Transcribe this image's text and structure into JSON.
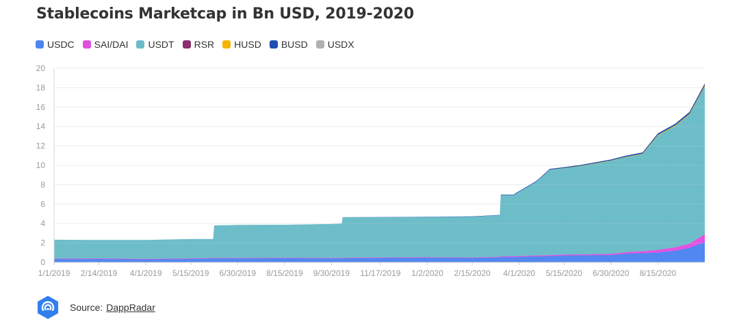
{
  "chart_data": {
    "type": "area",
    "stacked": true,
    "title": "Stablecoins Marketcap in Bn USD, 2019-2020",
    "legend_position": "top-left",
    "grid": true,
    "ylim": [
      0,
      20
    ],
    "y_ticks": [
      0,
      2,
      4,
      6,
      8,
      10,
      12,
      14,
      16,
      18,
      20
    ],
    "x_tick_labels": [
      "1/1/2019",
      "2/14/2019",
      "4/1/2019",
      "5/15/2019",
      "6/30/2019",
      "8/15/2019",
      "9/30/2019",
      "11/17/2019",
      "1/2/2020",
      "2/15/2020",
      "4/1/2020",
      "5/15/2020",
      "6/30/2020",
      "8/15/2020"
    ],
    "x_start": "2019-01-01",
    "x_end": "2020-09-30",
    "x_ticks": [
      "2019-01-01",
      "2019-02-14",
      "2019-04-01",
      "2019-05-15",
      "2019-06-30",
      "2019-08-15",
      "2019-09-30",
      "2019-11-17",
      "2020-01-02",
      "2020-02-15",
      "2020-04-01",
      "2020-05-15",
      "2020-06-30",
      "2020-08-15"
    ],
    "x": [
      "2019-01-01",
      "2019-02-14",
      "2019-04-01",
      "2019-05-15",
      "2019-06-06",
      "2019-06-07",
      "2019-07-01",
      "2019-08-15",
      "2019-09-30",
      "2019-10-10",
      "2019-10-11",
      "2019-11-17",
      "2020-01-02",
      "2020-02-15",
      "2020-03-13",
      "2020-03-14",
      "2020-03-27",
      "2020-03-28",
      "2020-04-16",
      "2020-04-20",
      "2020-05-01",
      "2020-05-15",
      "2020-06-01",
      "2020-06-30",
      "2020-07-15",
      "2020-07-31",
      "2020-08-15",
      "2020-09-01",
      "2020-09-15",
      "2020-09-30"
    ],
    "series": [
      {
        "name": "USDC",
        "color": "#4e86f0",
        "values": [
          0.33,
          0.35,
          0.3,
          0.35,
          0.4,
          0.4,
          0.4,
          0.42,
          0.4,
          0.4,
          0.42,
          0.45,
          0.48,
          0.45,
          0.5,
          0.55,
          0.55,
          0.55,
          0.62,
          0.62,
          0.65,
          0.7,
          0.72,
          0.75,
          0.9,
          0.95,
          1.0,
          1.2,
          1.5,
          2.1
        ]
      },
      {
        "name": "SAI/DAI",
        "color": "#e050e0",
        "values": [
          0.05,
          0.05,
          0.05,
          0.05,
          0.05,
          0.05,
          0.05,
          0.05,
          0.05,
          0.05,
          0.05,
          0.05,
          0.05,
          0.05,
          0.06,
          0.08,
          0.08,
          0.08,
          0.08,
          0.08,
          0.09,
          0.1,
          0.1,
          0.12,
          0.15,
          0.2,
          0.28,
          0.35,
          0.42,
          0.8
        ]
      },
      {
        "name": "USDT",
        "color": "#6bbcc8",
        "values": [
          1.95,
          1.9,
          1.95,
          2.0,
          1.95,
          3.35,
          3.4,
          3.4,
          3.5,
          3.55,
          4.2,
          4.15,
          4.15,
          4.2,
          4.3,
          6.3,
          6.3,
          6.4,
          7.5,
          7.8,
          8.8,
          8.9,
          9.1,
          9.6,
          9.8,
          10.0,
          11.8,
          12.5,
          13.3,
          15.2
        ]
      },
      {
        "name": "RSR",
        "color": "#8b2d6e",
        "values": [
          0,
          0,
          0,
          0,
          0,
          0,
          0,
          0,
          0,
          0,
          0,
          0,
          0,
          0,
          0,
          0,
          0,
          0,
          0,
          0,
          0,
          0,
          0,
          0,
          0,
          0,
          0,
          0,
          0.01,
          0.02
        ]
      },
      {
        "name": "HUSD",
        "color": "#f5b400",
        "values": [
          0,
          0,
          0,
          0,
          0,
          0,
          0,
          0,
          0,
          0,
          0,
          0,
          0,
          0,
          0,
          0,
          0,
          0,
          0,
          0,
          0.01,
          0.02,
          0.03,
          0.03,
          0.04,
          0.05,
          0.06,
          0.07,
          0.08,
          0.1
        ]
      },
      {
        "name": "BUSD",
        "color": "#1f4fb0",
        "values": [
          0,
          0,
          0,
          0,
          0,
          0,
          0,
          0,
          0,
          0,
          0,
          0.01,
          0.02,
          0.03,
          0.03,
          0.05,
          0.05,
          0.06,
          0.07,
          0.07,
          0.08,
          0.09,
          0.1,
          0.1,
          0.12,
          0.13,
          0.15,
          0.17,
          0.19,
          0.22
        ]
      },
      {
        "name": "USDX",
        "color": "#b0b0b0",
        "values": [
          0,
          0,
          0,
          0,
          0,
          0,
          0,
          0,
          0,
          0,
          0,
          0,
          0,
          0,
          0,
          0,
          0,
          0,
          0,
          0,
          0,
          0,
          0,
          0,
          0,
          0,
          0,
          0,
          0,
          0.02
        ]
      }
    ]
  },
  "legend": [
    {
      "label": "USDC",
      "color": "#4e86f0"
    },
    {
      "label": "SAI/DAI",
      "color": "#e050e0"
    },
    {
      "label": "USDT",
      "color": "#6bbcc8"
    },
    {
      "label": "RSR",
      "color": "#8b2d6e"
    },
    {
      "label": "HUSD",
      "color": "#f5b400"
    },
    {
      "label": "BUSD",
      "color": "#1f4fb0"
    },
    {
      "label": "USDX",
      "color": "#b0b0b0"
    }
  ],
  "source": {
    "prefix": "Source:",
    "link_text": "DappRadar",
    "logo_icon": "dappradar-logo-icon",
    "logo_color": "#2f80ed"
  }
}
